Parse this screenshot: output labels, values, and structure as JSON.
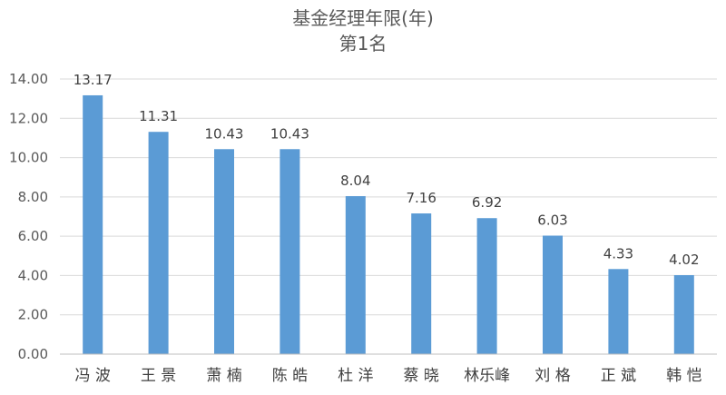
{
  "chart_data": {
    "type": "bar",
    "title": "基金经理年限(年)",
    "subtitle": "第1名",
    "categories": [
      "冯 波",
      "王 景",
      "萧 楠",
      "陈 皓",
      "杜 洋",
      "蔡 晓",
      "林乐峰",
      "刘 格",
      "正 斌",
      "韩 恺"
    ],
    "values": [
      13.17,
      11.31,
      10.43,
      10.43,
      8.04,
      7.16,
      6.92,
      6.03,
      4.33,
      4.02
    ],
    "data_labels": [
      "13.17",
      "11.31",
      "10.43",
      "10.43",
      "8.04",
      "7.16",
      "6.92",
      "6.03",
      "4.33",
      "4.02"
    ],
    "yticks": [
      "0.00",
      "2.00",
      "4.00",
      "6.00",
      "8.00",
      "10.00",
      "12.00",
      "14.00"
    ],
    "ylim": [
      0,
      14
    ],
    "grid": true,
    "legend": "none",
    "bar_color": "#5B9BD5"
  }
}
